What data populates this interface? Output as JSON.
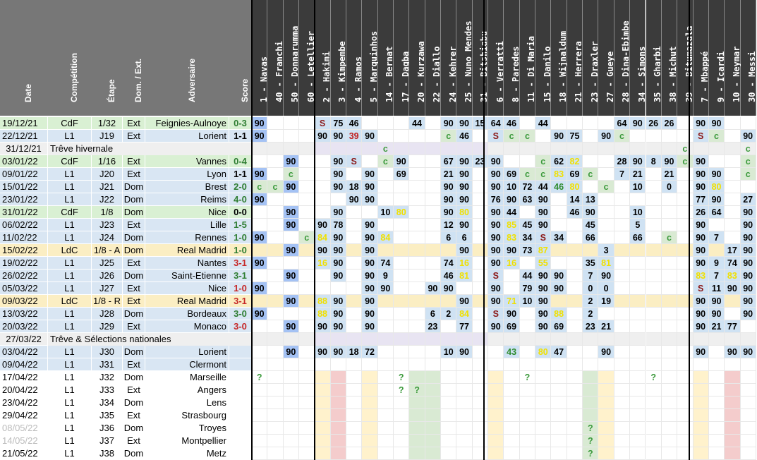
{
  "columns": {
    "date": "Date",
    "competition": "Compétition",
    "stage": "Étape",
    "venue": "Dom. / Ext.",
    "opponent": "Adversaire",
    "score": "Score"
  },
  "players": [
    "1 - Navas",
    "40 - Franchi",
    "50 - Donnarumma",
    "60 - Letellier",
    "2 - Hakimi",
    "3 - Kimpembe",
    "4 - Ramos",
    "5 - Marquinhos",
    "14 - Bernat",
    "17 - Dagba",
    "20 - Kurzawa",
    "22 - Diallo",
    "24 - Kehrer",
    "25 - Nuno Mendes",
    "31 - Bitshiabu",
    "6 - Verratti",
    "8 - Paredes",
    "11 - Di Maria",
    "15 - Danilo",
    "18 - Wijnaldum",
    "21 - Herrera",
    "23 - Draxler",
    "27 - Gueye",
    "28 - Dina-Ebimbe",
    "34 - Simons",
    "35 - Gharbi",
    "38 - Michut",
    "39 - Bitumazala",
    "7 - Mbappé",
    "9 - Icardi",
    "10 - Neymar",
    "30 - Messi"
  ],
  "colors": {
    "header": "#777777",
    "header_players": "#3b3b3b",
    "row_l1": "#d9e6f3",
    "row_cdf": "#d9f0d3",
    "row_ldc": "#fbeec3",
    "row_break": "#efefef",
    "row_future": "#ffffff",
    "blue": "#a4c2f4",
    "lblue": "#cfe2f3",
    "purple": "#d9d2e9",
    "green": "#d9ead3",
    "yellow": "#fff2cc",
    "pink": "#f4cccc",
    "grey": "#e3e3e3",
    "lavender": "#e8e4f2"
  },
  "matches": [
    {
      "kind": "m",
      "date": "19/12/21",
      "comp": "CdF",
      "stage": "1/32",
      "venue": "Ext",
      "opp": "Feignies-Aulnoye",
      "score": "0-3",
      "res": "w",
      "bg": "cdf",
      "cells": [
        "90",
        "",
        "",
        "",
        "S",
        "75",
        "46",
        "",
        "",
        "",
        "44",
        "",
        "90",
        "90",
        "15",
        "64",
        "46",
        "",
        "44",
        "",
        "",
        "",
        "",
        "64",
        "90",
        "26",
        "26",
        "",
        "90",
        "90",
        "",
        ""
      ]
    },
    {
      "kind": "m",
      "date": "22/12/21",
      "comp": "L1",
      "stage": "J19",
      "venue": "Ext",
      "opp": "Lorient",
      "score": "1-1",
      "res": "d",
      "bg": "l1",
      "cells": [
        "90",
        "",
        "",
        "",
        "90",
        "90",
        "39",
        "90",
        "",
        "",
        "",
        "",
        "c",
        "46",
        "",
        "S",
        "c",
        "c",
        "",
        "90",
        "75",
        "",
        "90",
        "c",
        "",
        "",
        "",
        "",
        "S",
        "c",
        "",
        "90"
      ]
    },
    {
      "kind": "b",
      "date": "31/12/21",
      "text": "Trêve hivernale",
      "cells": [
        "",
        "",
        "",
        "",
        "",
        "",
        "",
        "",
        "c",
        "",
        "",
        "",
        "",
        "",
        "",
        "",
        "",
        "",
        "",
        "",
        "",
        "",
        "",
        "",
        "",
        "",
        "",
        "c",
        "",
        "",
        "",
        "c"
      ]
    },
    {
      "kind": "m",
      "date": "03/01/22",
      "comp": "CdF",
      "stage": "1/16",
      "venue": "Ext",
      "opp": "Vannes",
      "score": "0-4",
      "res": "w",
      "bg": "cdf",
      "cells": [
        "",
        "",
        "90",
        "",
        "",
        "90",
        "S",
        "",
        "c",
        "90",
        "",
        "",
        "67",
        "90",
        "23",
        "90",
        "",
        "",
        "c",
        "62",
        "82",
        "",
        "",
        "28",
        "90",
        "8",
        "90",
        "c",
        "90",
        "",
        "",
        "c"
      ]
    },
    {
      "kind": "m",
      "date": "09/01/22",
      "comp": "L1",
      "stage": "J20",
      "venue": "Ext",
      "opp": "Lyon",
      "score": "1-1",
      "res": "d",
      "bg": "l1",
      "cells": [
        "90",
        "",
        "c",
        "",
        "",
        "90",
        "",
        "90",
        "",
        "69",
        "",
        "",
        "21",
        "90",
        "",
        "90",
        "69",
        "c",
        "c",
        "83",
        "69",
        "c",
        "",
        "7",
        "21",
        "",
        "21",
        "",
        "90",
        "90",
        "",
        "c"
      ]
    },
    {
      "kind": "m",
      "date": "15/01/22",
      "comp": "L1",
      "stage": "J21",
      "venue": "Dom",
      "opp": "Brest",
      "score": "2-0",
      "res": "w",
      "bg": "l1",
      "cells": [
        "c",
        "c",
        "90",
        "",
        "",
        "90",
        "18",
        "90",
        "",
        "",
        "",
        "",
        "90",
        "90",
        "",
        "90",
        "10",
        "72",
        "44",
        "46",
        "80",
        "",
        "c",
        "",
        "10",
        "",
        "0",
        "",
        "90",
        "80",
        "",
        ""
      ]
    },
    {
      "kind": "m",
      "date": "23/01/22",
      "comp": "L1",
      "stage": "J22",
      "venue": "Dom",
      "opp": "Reims",
      "score": "4-0",
      "res": "w",
      "bg": "l1",
      "cells": [
        "90",
        "",
        "",
        "",
        "",
        "",
        "90",
        "90",
        "",
        "",
        "",
        "",
        "90",
        "90",
        "",
        "76",
        "90",
        "63",
        "90",
        "",
        "14",
        "13",
        "",
        "",
        "",
        "",
        "",
        "",
        "77",
        "90",
        "",
        "27"
      ]
    },
    {
      "kind": "m",
      "date": "31/01/22",
      "comp": "CdF",
      "stage": "1/8",
      "venue": "Dom",
      "opp": "Nice",
      "score": "0-0",
      "res": "d",
      "bg": "cdf",
      "cells": [
        "",
        "",
        "90",
        "",
        "",
        "90",
        "",
        "",
        "10",
        "80",
        "",
        "",
        "90",
        "80",
        "",
        "90",
        "44",
        "",
        "90",
        "",
        "46",
        "90",
        "",
        "",
        "10",
        "",
        "",
        "",
        "26",
        "64",
        "",
        "90"
      ]
    },
    {
      "kind": "m",
      "date": "06/02/22",
      "comp": "L1",
      "stage": "J23",
      "venue": "Ext",
      "opp": "Lille",
      "score": "1-5",
      "res": "w",
      "bg": "l1",
      "cells": [
        "",
        "",
        "90",
        "",
        "90",
        "78",
        "",
        "90",
        "",
        "",
        "",
        "",
        "12",
        "90",
        "",
        "90",
        "85",
        "45",
        "90",
        "",
        "",
        "45",
        "",
        "",
        "5",
        "",
        "",
        "",
        "90",
        "",
        "",
        "90"
      ]
    },
    {
      "kind": "m",
      "date": "11/02/22",
      "comp": "L1",
      "stage": "J24",
      "venue": "Dom",
      "opp": "Rennes",
      "score": "1-0",
      "res": "w",
      "bg": "l1",
      "cells": [
        "90",
        "",
        "",
        "c",
        "84",
        "90",
        "",
        "90",
        "84",
        "",
        "",
        "",
        "6",
        "6",
        "",
        "90",
        "83",
        "34",
        "S",
        "34",
        "",
        "66",
        "",
        "",
        "66",
        "",
        "c",
        "",
        "90",
        "7",
        "",
        "90"
      ]
    },
    {
      "kind": "m",
      "date": "15/02/22",
      "comp": "LdC",
      "stage": "1/8 - A",
      "venue": "Dom",
      "opp": "Real Madrid",
      "score": "1-0",
      "res": "w",
      "bg": "ldc",
      "cells": [
        "",
        "",
        "90",
        "",
        "90",
        "90",
        "",
        "90",
        "",
        "",
        "",
        "",
        "",
        "90",
        "",
        "90",
        "90",
        "73",
        "87",
        "",
        "",
        "",
        "3",
        "",
        "",
        "",
        "",
        "",
        "90",
        "",
        "17",
        "90"
      ]
    },
    {
      "kind": "m",
      "date": "19/02/22",
      "comp": "L1",
      "stage": "J25",
      "venue": "Ext",
      "opp": "Nantes",
      "score": "3-1",
      "res": "l",
      "bg": "l1",
      "cells": [
        "90",
        "",
        "",
        "",
        "16",
        "90",
        "",
        "90",
        "74",
        "",
        "",
        "",
        "74",
        "16",
        "",
        "90",
        "16",
        "",
        "55",
        "",
        "",
        "35",
        "81",
        "",
        "",
        "",
        "",
        "",
        "90",
        "9",
        "74",
        "90"
      ]
    },
    {
      "kind": "m",
      "date": "26/02/22",
      "comp": "L1",
      "stage": "J26",
      "venue": "Dom",
      "opp": "Saint-Etienne",
      "score": "3-1",
      "res": "w",
      "bg": "l1",
      "cells": [
        "",
        "",
        "90",
        "",
        "",
        "90",
        "",
        "90",
        "9",
        "",
        "",
        "",
        "46",
        "81",
        "",
        "S",
        "",
        "44",
        "90",
        "90",
        "",
        "7",
        "90",
        "",
        "",
        "",
        "",
        "",
        "83",
        "7",
        "83",
        "90"
      ]
    },
    {
      "kind": "m",
      "date": "05/03/22",
      "comp": "L1",
      "stage": "J27",
      "venue": "Ext",
      "opp": "Nice",
      "score": "1-0",
      "res": "l",
      "bg": "l1",
      "cells": [
        "90",
        "",
        "",
        "",
        "",
        "",
        "",
        "90",
        "90",
        "",
        "",
        "90",
        "90",
        "",
        "",
        "90",
        "",
        "79",
        "90",
        "90",
        "",
        "0",
        "0",
        "",
        "",
        "",
        "",
        "",
        "S",
        "11",
        "90",
        "90"
      ]
    },
    {
      "kind": "m",
      "date": "09/03/22",
      "comp": "LdC",
      "stage": "1/8 - R",
      "venue": "Ext",
      "opp": "Real Madrid",
      "score": "3-1",
      "res": "l",
      "bg": "ldc",
      "cells": [
        "",
        "",
        "90",
        "",
        "88",
        "90",
        "",
        "90",
        "",
        "",
        "",
        "",
        "",
        "90",
        "",
        "90",
        "71",
        "10",
        "90",
        "",
        "",
        "2",
        "19",
        "",
        "",
        "",
        "",
        "",
        "90",
        "90",
        "",
        "90"
      ]
    },
    {
      "kind": "m",
      "date": "13/03/22",
      "comp": "L1",
      "stage": "J28",
      "venue": "Dom",
      "opp": "Bordeaux",
      "score": "3-0",
      "res": "w",
      "bg": "l1",
      "cells": [
        "90",
        "",
        "",
        "",
        "88",
        "90",
        "",
        "90",
        "",
        "",
        "",
        "6",
        "2",
        "84",
        "",
        "S",
        "90",
        "",
        "90",
        "88",
        "",
        "2",
        "",
        "",
        "",
        "",
        "",
        "",
        "90",
        "90",
        "",
        "90"
      ]
    },
    {
      "kind": "m",
      "date": "20/03/22",
      "comp": "L1",
      "stage": "J29",
      "venue": "Ext",
      "opp": "Monaco",
      "score": "3-0",
      "res": "l",
      "bg": "l1",
      "cells": [
        "",
        "",
        "90",
        "",
        "90",
        "90",
        "",
        "90",
        "",
        "",
        "",
        "23",
        "",
        "77",
        "",
        "90",
        "69",
        "",
        "90",
        "69",
        "",
        "23",
        "21",
        "",
        "",
        "",
        "",
        "",
        "90",
        "21",
        "77",
        ""
      ]
    },
    {
      "kind": "b",
      "date": "27/03/22",
      "text": "Trêve & Sélections nationales",
      "cells": [
        "",
        "",
        "",
        "",
        "",
        "",
        "",
        "",
        "",
        "",
        "",
        "",
        "",
        "",
        "",
        "",
        "",
        "",
        "",
        "",
        "",
        "",
        "",
        "",
        "",
        "",
        "",
        "",
        "",
        "",
        "",
        ""
      ]
    },
    {
      "kind": "m",
      "date": "03/04/22",
      "comp": "L1",
      "stage": "J30",
      "venue": "Dom",
      "opp": "Lorient",
      "score": "",
      "res": "",
      "bg": "l1",
      "cells": [
        "",
        "",
        "90",
        "",
        "90",
        "90",
        "18",
        "72",
        "",
        "",
        "",
        "",
        "10",
        "90",
        "",
        "",
        "43",
        "",
        "80",
        "47",
        "",
        "",
        "90",
        "",
        "",
        "",
        "",
        "",
        "90",
        "",
        "90",
        "90"
      ]
    },
    {
      "kind": "m",
      "date": "09/04/22",
      "comp": "L1",
      "stage": "J31",
      "venue": "Ext",
      "opp": "Clermont",
      "score": "",
      "res": "",
      "bg": "l1",
      "cells": [
        "",
        "",
        "",
        "",
        "",
        "",
        "",
        "",
        "",
        "",
        "",
        "",
        "",
        "",
        "",
        "",
        "",
        "",
        "",
        "",
        "",
        "",
        "",
        "",
        "",
        "",
        "",
        "",
        "",
        "",
        "",
        ""
      ]
    },
    {
      "kind": "f",
      "date": "17/04/22",
      "comp": "L1",
      "stage": "J32",
      "venue": "Dom",
      "opp": "Marseille",
      "score": "",
      "res": "",
      "bg": "fut",
      "cells": [
        "?",
        "",
        "",
        "",
        "",
        "",
        "",
        "",
        "",
        "?",
        "",
        "",
        "",
        "",
        "",
        "",
        "",
        "?",
        "",
        "",
        "",
        "",
        "",
        "",
        "",
        "?",
        "",
        "",
        "",
        "",
        "",
        ""
      ]
    },
    {
      "kind": "f",
      "date": "20/04/22",
      "comp": "L1",
      "stage": "J33",
      "venue": "Ext",
      "opp": "Angers",
      "score": "",
      "res": "",
      "bg": "fut",
      "cells": [
        "",
        "",
        "",
        "",
        "",
        "",
        "",
        "",
        "",
        "?",
        "?",
        "",
        "",
        "",
        "",
        "",
        "",
        "",
        "",
        "",
        "",
        "",
        "",
        "",
        "",
        "",
        "",
        "",
        "",
        "",
        "",
        ""
      ]
    },
    {
      "kind": "f",
      "date": "23/04/22",
      "comp": "L1",
      "stage": "J34",
      "venue": "Dom",
      "opp": "Lens",
      "score": "",
      "res": "",
      "bg": "fut",
      "cells": [
        "",
        "",
        "",
        "",
        "",
        "",
        "",
        "",
        "",
        "",
        "",
        "",
        "",
        "",
        "",
        "",
        "",
        "",
        "",
        "",
        "",
        "",
        "",
        "",
        "",
        "",
        "",
        "",
        "",
        "",
        "",
        ""
      ]
    },
    {
      "kind": "f",
      "date": "29/04/22",
      "comp": "L1",
      "stage": "J35",
      "venue": "Ext",
      "opp": "Strasbourg",
      "score": "",
      "res": "",
      "bg": "fut",
      "cells": [
        "",
        "",
        "",
        "",
        "",
        "",
        "",
        "",
        "",
        "",
        "",
        "",
        "",
        "",
        "",
        "",
        "",
        "",
        "",
        "",
        "",
        "",
        "",
        "",
        "",
        "",
        "",
        "",
        "",
        "",
        "",
        ""
      ]
    },
    {
      "kind": "f",
      "date": "08/05/22",
      "comp": "L1",
      "stage": "J36",
      "venue": "Dom",
      "opp": "Troyes",
      "score": "",
      "res": "",
      "bg": "fut",
      "dim": true,
      "cells": [
        "",
        "",
        "",
        "",
        "",
        "",
        "",
        "",
        "",
        "",
        "",
        "",
        "",
        "",
        "",
        "",
        "",
        "",
        "",
        "",
        "",
        "?",
        "",
        "",
        "",
        "",
        "",
        "",
        "",
        "",
        "",
        ""
      ]
    },
    {
      "kind": "f",
      "date": "14/05/22",
      "comp": "L1",
      "stage": "J37",
      "venue": "Ext",
      "opp": "Montpellier",
      "score": "",
      "res": "",
      "bg": "fut",
      "dim": true,
      "cells": [
        "",
        "",
        "",
        "",
        "",
        "",
        "",
        "",
        "",
        "",
        "",
        "",
        "",
        "",
        "",
        "",
        "",
        "",
        "",
        "",
        "",
        "?",
        "",
        "",
        "",
        "",
        "",
        "",
        "",
        "",
        "",
        ""
      ]
    },
    {
      "kind": "f",
      "date": "21/05/22",
      "comp": "L1",
      "stage": "J38",
      "venue": "Dom",
      "opp": "Metz",
      "score": "",
      "res": "",
      "bg": "fut",
      "cells": [
        "",
        "",
        "",
        "",
        "",
        "",
        "",
        "",
        "",
        "",
        "",
        "",
        "",
        "",
        "",
        "",
        "",
        "",
        "",
        "",
        "",
        "?",
        "",
        "",
        "",
        "",
        "",
        "",
        "",
        "",
        "",
        ""
      ]
    }
  ]
}
